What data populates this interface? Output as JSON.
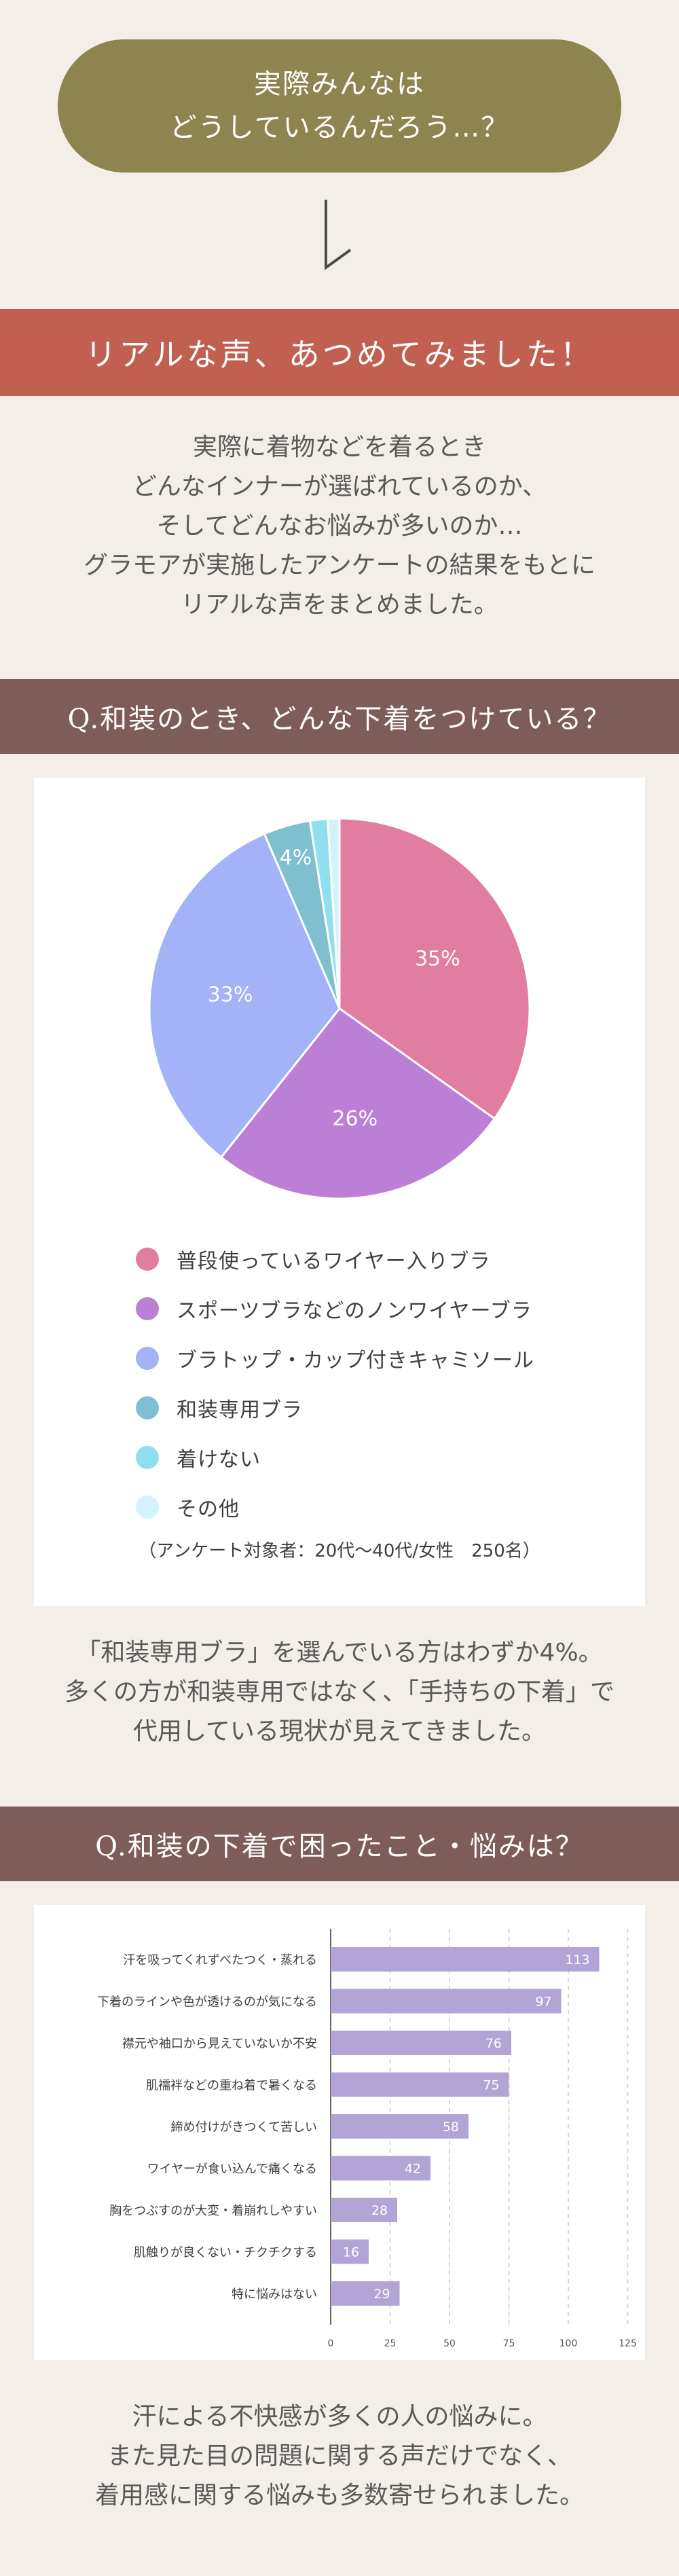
{
  "intro": {
    "line1": "実際みんなは",
    "line2": "どうしているんだろう…？"
  },
  "section_main": {
    "title": "リアルな声、あつめてみました！",
    "paragraph": [
      "実際に着物などを着るとき",
      "どんなインナーが選ばれているのか、",
      "そしてどんなお悩みが多いのか…",
      "グラモアが実施したアンケートの結果をもとに",
      "リアルな声をまとめました。"
    ]
  },
  "q1": {
    "title": "Q.和装のとき、どんな下着をつけている？",
    "note": "（アンケート対象者：20代〜40代/女性　250名）",
    "conclusion": [
      "「和装専用ブラ」を選んでいる方はわずか4%。",
      "多くの方が和装専用ではなく、「手持ちの下着」で",
      "代用している現状が見えてきました。"
    ]
  },
  "q2": {
    "title": "Q.和装の下着で困ったこと・悩みは？",
    "conclusion": [
      "汗による不快感が多くの人の悩みに。",
      "また見た目の問題に関する声だけでなく、",
      "着用感に関する悩みも多数寄せられました。"
    ]
  },
  "chart_data": [
    {
      "type": "pie",
      "categories": [
        "普段使っているワイヤー入りブラ",
        "スポーツブラなどのノンワイヤーブラ",
        "ブラトップ・カップ付きキャミソール",
        "和装専用ブラ",
        "着けない",
        "その他"
      ],
      "values": [
        35,
        26,
        33,
        4,
        1.5,
        1
      ],
      "labels": [
        "35%",
        "26%",
        "33%",
        "4%",
        "",
        ""
      ],
      "colors": [
        "#e07da1",
        "#bc7fd6",
        "#a2b3f8",
        "#7fbfd0",
        "#8ee0ee",
        "#d3f3fb"
      ],
      "legend_position": "bottom"
    },
    {
      "type": "bar",
      "orientation": "horizontal",
      "categories": [
        "汗を吸ってくれずべたつく・蒸れる",
        "下着のラインや色が透けるのが気になる",
        "襟元や袖口から見えていないか不安",
        "肌襦袢などの重ね着で暑くなる",
        "締め付けがきつくて苦しい",
        "ワイヤーが食い込んで痛くなる",
        "胸をつぶすのが大変・着崩れしやすい",
        "肌触りが良くない・チクチクする",
        "特に悩みはない"
      ],
      "values": [
        113,
        97,
        76,
        75,
        58,
        42,
        28,
        16,
        29
      ],
      "xticks": [
        0,
        25,
        50,
        75,
        100,
        125
      ],
      "xlim": [
        0,
        125
      ],
      "bar_color": "#b3a4d6",
      "grid": true
    }
  ]
}
